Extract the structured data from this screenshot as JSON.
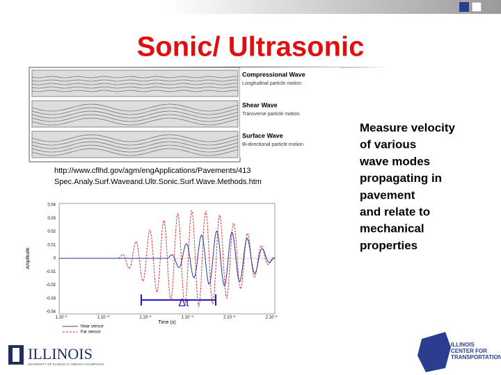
{
  "title": "Sonic/ Ultrasonic",
  "wave_figure": {
    "labels": [
      {
        "name": "Compressional Wave",
        "caption": "Longitudinal particle motion"
      },
      {
        "name": "Shear Wave",
        "caption": "Transverse particle motion."
      },
      {
        "name": "Surface Wave",
        "caption": "Bi-directional particle motion"
      }
    ]
  },
  "citation": [
    "http://www.cflhd.gov/agm/engApplications/Pavements/413",
    "Spec.Analy.Surf.Waveand.Ultr.Sonic.Surf.Wave.Methods.htm"
  ],
  "body": [
    "Measure velocity",
    "of various",
    "wave modes",
    "propagating in",
    "pavement",
    "and relate to",
    "mechanical",
    "properties"
  ],
  "plot": {
    "y_label": "Amplitude",
    "x_label": "Time (s)",
    "y_ticks": [
      "0.04",
      "0.03",
      "0.02",
      "0.01",
      "0",
      "-0.01",
      "-0.02",
      "-0.03",
      "-0.04"
    ],
    "x_ticks": [
      "1.10⁻³",
      "1.10⁻³",
      "1.10⁻³",
      "1.10⁻³",
      "2.10⁻³",
      "2.10⁻³"
    ],
    "legend": [
      "Near sensor",
      "Far sensor"
    ],
    "annotation": "Δt"
  },
  "logos": {
    "left": "ILLINOIS",
    "left_sub": "UNIVERSITY OF ILLINOIS AT URBANA-CHAMPAIGN",
    "right": [
      "ILLINOIS",
      "CENTER FOR",
      "TRANSPORTATION"
    ]
  }
}
